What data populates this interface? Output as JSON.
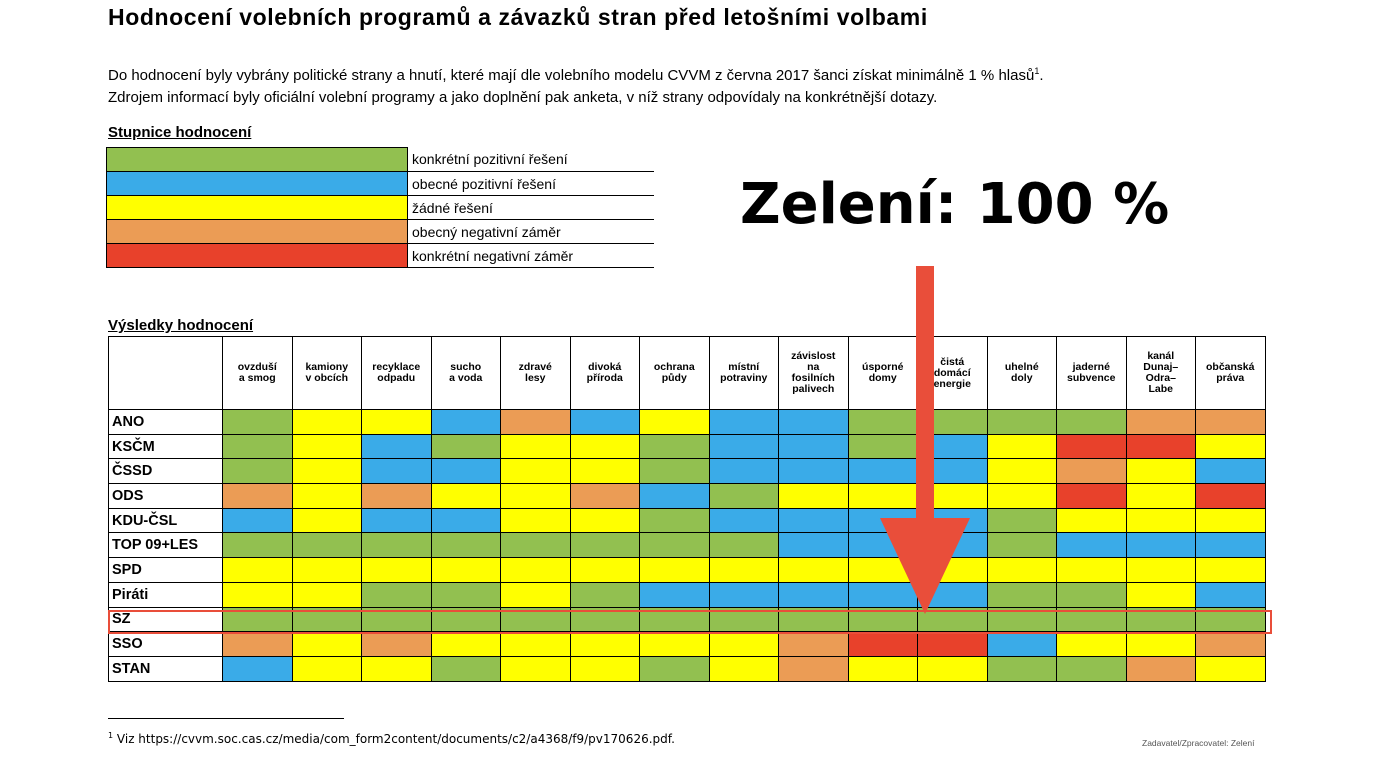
{
  "title": "Hodnocení volebních programů a závazků stran před letošními volbami",
  "intro": {
    "line1": "Do hodnocení byly vybrány politické strany a hnutí, které mají dle volebního modelu CVVM z června 2017 šanci získat minimálně 1 % hlasů",
    "line1_sup": "1",
    "line1_end": ".",
    "line2": "Zdrojem informací byly oficiální volební programy a jako doplnění pak anketa, v níž strany odpovídaly na konkrétnější dotazy."
  },
  "scale": {
    "heading": "Stupnice hodnocení",
    "items": [
      {
        "label": "konkrétní pozitivní řešení",
        "color": "#92c050"
      },
      {
        "label": "obecné pozitivní řešení",
        "color": "#3aabe8"
      },
      {
        "label": "žádné řešení",
        "color": "#ffff00"
      },
      {
        "label": "obecný negativní záměr",
        "color": "#eb9c55"
      },
      {
        "label": "konkrétní negativní záměr",
        "color": "#e8412b"
      }
    ]
  },
  "callout": "Zelení: 100 %",
  "results": {
    "heading": "Výsledky hodnocení",
    "columns": [
      "ovzduší\na smog",
      "kamiony\nv obcích",
      "recyklace\nodpadu",
      "sucho\na voda",
      "zdravé\nlesy",
      "divoká\npříroda",
      "ochrana\npůdy",
      "místní\npotraviny",
      "závislost\nna\nfosilních\npalivech",
      "úsporné\ndomy",
      "čistá\ndomácí\nenergie",
      "uhelné\ndoly",
      "jaderné\nsubvence",
      "kanál\nDunaj–\nOdra–\nLabe",
      "občanská\npráva"
    ],
    "rows": [
      {
        "party": "ANO",
        "cells": "gyybobybbggggoo"
      },
      {
        "party": "KSČM",
        "cells": "gybgyygbbgbyrry"
      },
      {
        "party": "ČSSD",
        "cells": "gybbyygbbbbyoyb"
      },
      {
        "party": "ODS",
        "cells": "oyoyyobgyyyyryr"
      },
      {
        "party": "KDU-ČSL",
        "cells": "bybbyygbbbbgyyy"
      },
      {
        "party": "TOP 09+LES",
        "cells": "ggggggggbbbgbbb"
      },
      {
        "party": "SPD",
        "cells": "yyyyyyyyyyyyyyy"
      },
      {
        "party": "Piráti",
        "cells": "yyggygbbbbbggyb"
      },
      {
        "party": "SZ",
        "cells": "ggggggggggggggg"
      },
      {
        "party": "SSO",
        "cells": "oyoyyyyyorrbyyo"
      },
      {
        "party": "STAN",
        "cells": "byygyygyoyyggoy"
      }
    ]
  },
  "footnote": {
    "mark": "1",
    "text": " Viz https://cvvm.soc.cas.cz/media/com_form2content/documents/c2/a4368/f9/pv170626.pdf."
  },
  "credit": "Zadavatel/Zpracovatel: Zelení",
  "colors": {
    "highlight": "#e94e3a",
    "arrow": "#e94e3a"
  }
}
